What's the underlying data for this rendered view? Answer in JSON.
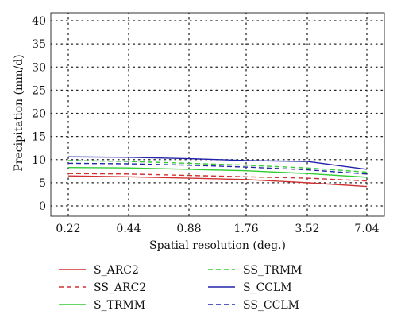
{
  "chart_data": {
    "type": "line",
    "x": [
      "0.22",
      "0.44",
      "0.88",
      "1.76",
      "3.52",
      "7.04"
    ],
    "xlabel": "Spatial resolution (deg.)",
    "ylabel": "Precipitation (mm/d)",
    "ylim": [
      0,
      40
    ],
    "yticks": [
      0,
      5,
      10,
      15,
      20,
      25,
      30,
      35,
      40
    ],
    "grid": true,
    "legend_position": "bottom",
    "series": [
      {
        "name": "S_ARC2",
        "values": [
          6.5,
          6.3,
          6.0,
          5.7,
          5.0,
          4.2
        ],
        "color": "#d03030",
        "dash": false
      },
      {
        "name": "SS_ARC2",
        "values": [
          7.0,
          6.9,
          6.6,
          6.3,
          6.0,
          5.4
        ],
        "color": "#d03030",
        "dash": true
      },
      {
        "name": "S_TRMM",
        "values": [
          8.3,
          8.2,
          7.9,
          7.6,
          7.0,
          6.2
        ],
        "color": "#33cc33",
        "dash": false
      },
      {
        "name": "SS_TRMM",
        "values": [
          9.8,
          9.6,
          9.2,
          8.8,
          8.2,
          7.3
        ],
        "color": "#33cc33",
        "dash": true
      },
      {
        "name": "S_CCLM",
        "values": [
          10.6,
          10.5,
          10.2,
          9.8,
          9.6,
          7.9
        ],
        "color": "#2222aa",
        "dash": false
      },
      {
        "name": "SS_CCLM",
        "values": [
          9.2,
          9.1,
          8.8,
          8.4,
          7.8,
          6.9
        ],
        "color": "#2222aa",
        "dash": true
      }
    ]
  }
}
